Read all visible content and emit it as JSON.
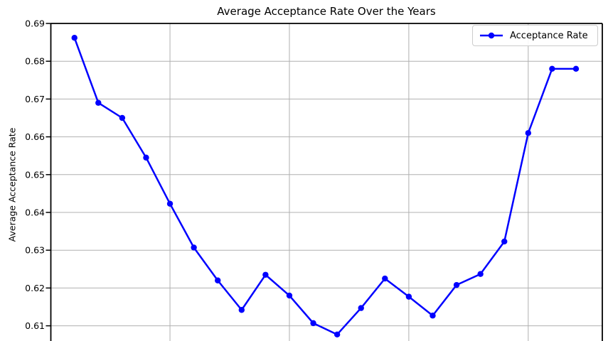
{
  "chart_data": {
    "type": "line",
    "title": "Average Acceptance Rate Over the Years",
    "xlabel": "",
    "ylabel": "Average Acceptance Rate",
    "series": [
      {
        "name": "Acceptance Rate",
        "color": "#0000ff",
        "marker": "circle",
        "values": [
          0.6862,
          0.669,
          0.665,
          0.6545,
          0.6423,
          0.6307,
          0.622,
          0.6142,
          0.6235,
          0.618,
          0.6107,
          0.6077,
          0.6147,
          0.6225,
          0.6177,
          0.6127,
          0.6208,
          0.6237,
          0.6323,
          0.661,
          0.678,
          0.678
        ]
      }
    ],
    "num_points": 22,
    "x_tick_labels_visible": false,
    "x_gridline_point_indices": [
      4,
      9,
      14,
      19
    ],
    "y_ticks": [
      0.69,
      0.68,
      0.67,
      0.66,
      0.65,
      0.64,
      0.63,
      0.62,
      0.61
    ],
    "y_tick_labels": [
      "0.69",
      "0.68",
      "0.67",
      "0.66",
      "0.65",
      "0.64",
      "0.63",
      "0.62",
      "0.61"
    ],
    "ylim": [
      0.605,
      0.69
    ],
    "grid": true,
    "legend": {
      "label": "Acceptance Rate",
      "position": "upper right"
    },
    "colors": {
      "line": "#0000ff",
      "grid": "#b0b0b0",
      "spine": "#000000",
      "legend_border": "#cccccc",
      "text": "#000000"
    }
  }
}
